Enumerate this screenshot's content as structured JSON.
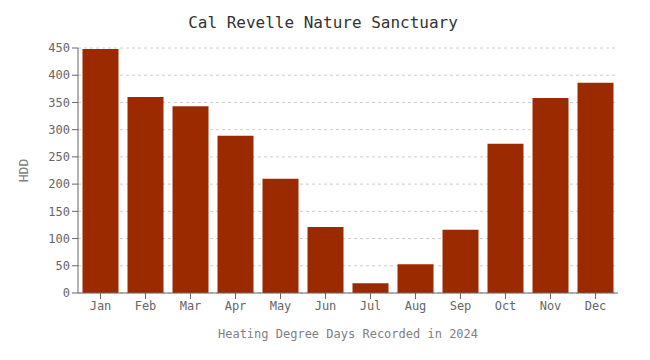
{
  "chart_data": {
    "type": "bar",
    "title": "Cal Revelle Nature Sanctuary",
    "xlabel": "Heating Degree Days Recorded in 2024",
    "ylabel": "HDD",
    "categories": [
      "Jan",
      "Feb",
      "Mar",
      "Apr",
      "May",
      "Jun",
      "Jul",
      "Aug",
      "Sep",
      "Oct",
      "Nov",
      "Dec"
    ],
    "values": [
      448,
      360,
      343,
      289,
      210,
      121,
      18,
      53,
      116,
      274,
      358,
      386
    ],
    "color": "#9C2A00",
    "ylim": [
      0,
      450
    ],
    "yticks": [
      0,
      50,
      100,
      150,
      200,
      250,
      300,
      350,
      400,
      450
    ],
    "grid": true
  }
}
